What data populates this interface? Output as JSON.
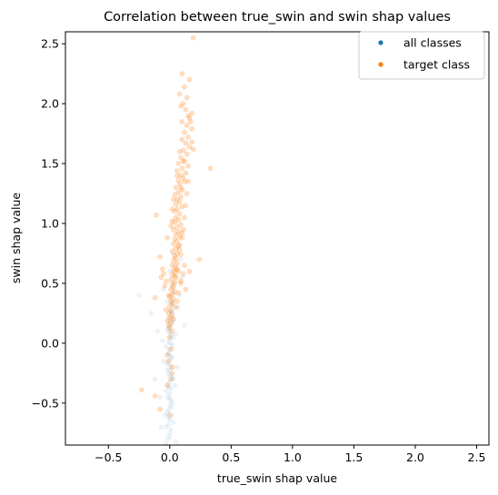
{
  "chart_data": {
    "type": "scatter",
    "title": "Correlation between true_swin and swin shap values",
    "xlabel": "true_swin shap value",
    "ylabel": "swin shap value",
    "xlim": [
      -0.85,
      2.6
    ],
    "ylim": [
      -0.85,
      2.6
    ],
    "xticks": [
      -0.5,
      0.0,
      0.5,
      1.0,
      1.5,
      2.0,
      2.5
    ],
    "yticks": [
      -0.5,
      0.0,
      0.5,
      1.0,
      1.5,
      2.0,
      2.5
    ],
    "xtick_labels": [
      "−0.5",
      "0.0",
      "0.5",
      "1.0",
      "1.5",
      "2.0",
      "2.5"
    ],
    "ytick_labels": [
      "−0.5",
      "0.0",
      "0.5",
      "1.0",
      "1.5",
      "2.0",
      "2.5"
    ],
    "grid": false,
    "legend_position": "top-right",
    "series": [
      {
        "name": "all classes",
        "color": "#1f77b4",
        "opacity": 0.08,
        "points": [
          [
            -0.02,
            -0.8
          ],
          [
            0.0,
            -0.75
          ],
          [
            0.01,
            -0.72
          ],
          [
            -0.01,
            -0.68
          ],
          [
            0.0,
            -0.64
          ],
          [
            0.02,
            -0.6
          ],
          [
            -0.01,
            -0.56
          ],
          [
            0.0,
            -0.52
          ],
          [
            0.01,
            -0.48
          ],
          [
            -0.02,
            -0.45
          ],
          [
            0.0,
            -0.42
          ],
          [
            0.01,
            -0.38
          ],
          [
            -0.01,
            -0.35
          ],
          [
            0.0,
            -0.32
          ],
          [
            0.02,
            -0.29
          ],
          [
            -0.01,
            -0.26
          ],
          [
            0.0,
            -0.23
          ],
          [
            0.01,
            -0.2
          ],
          [
            -0.02,
            -0.17
          ],
          [
            0.0,
            -0.14
          ],
          [
            0.01,
            -0.11
          ],
          [
            -0.01,
            -0.08
          ],
          [
            0.0,
            -0.05
          ],
          [
            0.02,
            -0.02
          ],
          [
            -0.01,
            0.01
          ],
          [
            0.0,
            0.04
          ],
          [
            0.01,
            0.07
          ],
          [
            -0.01,
            0.1
          ],
          [
            0.0,
            0.13
          ],
          [
            0.02,
            0.16
          ],
          [
            0.01,
            0.19
          ],
          [
            0.0,
            0.22
          ],
          [
            0.02,
            0.25
          ],
          [
            0.01,
            0.28
          ],
          [
            0.03,
            0.31
          ],
          [
            0.02,
            0.34
          ],
          [
            0.01,
            0.38
          ],
          [
            0.03,
            0.42
          ],
          [
            0.02,
            0.46
          ],
          [
            0.04,
            0.5
          ],
          [
            -0.03,
            -0.7
          ],
          [
            0.03,
            -0.66
          ],
          [
            -0.02,
            -0.58
          ],
          [
            0.02,
            -0.5
          ],
          [
            -0.03,
            -0.4
          ],
          [
            0.03,
            -0.3
          ],
          [
            -0.02,
            -0.22
          ],
          [
            0.02,
            -0.12
          ],
          [
            -0.03,
            -0.03
          ],
          [
            0.03,
            0.05
          ],
          [
            -0.02,
            0.12
          ],
          [
            0.03,
            0.2
          ],
          [
            -0.01,
            -0.62
          ],
          [
            0.01,
            -0.54
          ],
          [
            0.0,
            -0.46
          ],
          [
            -0.01,
            -0.37
          ],
          [
            0.01,
            -0.27
          ],
          [
            0.0,
            -0.18
          ],
          [
            -0.01,
            -0.09
          ],
          [
            0.01,
            0.0
          ],
          [
            0.0,
            0.09
          ],
          [
            -0.01,
            0.17
          ],
          [
            0.01,
            0.26
          ],
          [
            0.0,
            -0.78
          ],
          [
            -0.04,
            -0.6
          ],
          [
            0.04,
            -0.35
          ],
          [
            -0.05,
            -0.15
          ],
          [
            0.05,
            0.08
          ],
          [
            -0.06,
            0.02
          ],
          [
            0.06,
            -0.2
          ],
          [
            -0.08,
            -0.45
          ],
          [
            0.07,
            0.3
          ],
          [
            -0.1,
            0.1
          ],
          [
            0.08,
            0.4
          ],
          [
            -0.12,
            -0.3
          ],
          [
            0.1,
            0.55
          ],
          [
            -0.25,
            0.4
          ],
          [
            -0.15,
            0.25
          ],
          [
            0.12,
            0.15
          ],
          [
            -0.07,
            -0.7
          ],
          [
            0.05,
            -0.82
          ],
          [
            -0.03,
            -0.84
          ],
          [
            0.0,
            0.6
          ],
          [
            0.04,
            0.65
          ],
          [
            -0.02,
            0.35
          ],
          [
            0.09,
            0.7
          ],
          [
            -0.05,
            0.45
          ],
          [
            0.03,
            0.75
          ]
        ]
      },
      {
        "name": "target class",
        "color": "#ff7f0e",
        "opacity": 0.25,
        "points": [
          [
            0.19,
            2.55
          ],
          [
            0.1,
            2.25
          ],
          [
            0.16,
            2.2
          ],
          [
            0.12,
            2.14
          ],
          [
            0.08,
            2.08
          ],
          [
            0.14,
            2.05
          ],
          [
            0.11,
            2.0
          ],
          [
            0.09,
            1.98
          ],
          [
            0.13,
            1.95
          ],
          [
            0.18,
            1.92
          ],
          [
            0.16,
            1.88
          ],
          [
            0.1,
            1.85
          ],
          [
            0.14,
            1.82
          ],
          [
            0.18,
            1.79
          ],
          [
            0.12,
            1.76
          ],
          [
            0.15,
            1.72
          ],
          [
            0.1,
            1.7
          ],
          [
            0.13,
            1.67
          ],
          [
            0.16,
            1.64
          ],
          [
            0.11,
            1.61
          ],
          [
            0.14,
            1.58
          ],
          [
            0.09,
            1.55
          ],
          [
            0.12,
            1.52
          ],
          [
            0.07,
            1.5
          ],
          [
            0.15,
            1.48
          ],
          [
            0.1,
            1.46
          ],
          [
            0.33,
            1.46
          ],
          [
            0.06,
            1.44
          ],
          [
            0.13,
            1.42
          ],
          [
            0.09,
            1.4
          ],
          [
            0.11,
            1.38
          ],
          [
            0.07,
            1.36
          ],
          [
            0.12,
            1.35
          ],
          [
            0.08,
            1.33
          ],
          [
            0.05,
            1.3
          ],
          [
            0.1,
            1.28
          ],
          [
            0.07,
            1.26
          ],
          [
            0.04,
            1.24
          ],
          [
            0.09,
            1.22
          ],
          [
            0.06,
            1.2
          ],
          [
            0.08,
            1.18
          ],
          [
            0.05,
            1.16
          ],
          [
            0.1,
            1.14
          ],
          [
            0.06,
            1.12
          ],
          [
            0.04,
            1.1
          ],
          [
            0.08,
            1.08
          ],
          [
            -0.11,
            1.07
          ],
          [
            0.05,
            1.05
          ],
          [
            0.07,
            1.03
          ],
          [
            0.04,
            1.01
          ],
          [
            0.09,
            0.99
          ],
          [
            0.06,
            0.97
          ],
          [
            0.03,
            0.95
          ],
          [
            0.07,
            0.93
          ],
          [
            0.05,
            0.91
          ],
          [
            0.08,
            0.89
          ],
          [
            0.04,
            0.87
          ],
          [
            0.06,
            0.85
          ],
          [
            0.03,
            0.83
          ],
          [
            0.07,
            0.81
          ],
          [
            0.05,
            0.79
          ],
          [
            0.02,
            0.77
          ],
          [
            0.06,
            0.75
          ],
          [
            0.04,
            0.73
          ],
          [
            0.24,
            0.7
          ],
          [
            0.05,
            0.71
          ],
          [
            0.03,
            0.69
          ],
          [
            0.06,
            0.67
          ],
          [
            0.02,
            0.65
          ],
          [
            0.05,
            0.63
          ],
          [
            0.03,
            0.61
          ],
          [
            0.16,
            0.6
          ],
          [
            0.04,
            0.59
          ],
          [
            0.02,
            0.57
          ],
          [
            0.05,
            0.55
          ],
          [
            0.01,
            0.53
          ],
          [
            0.04,
            0.51
          ],
          [
            0.02,
            0.49
          ],
          [
            0.03,
            0.47
          ],
          [
            0.01,
            0.45
          ],
          [
            0.04,
            0.43
          ],
          [
            0.02,
            0.41
          ],
          [
            0.0,
            0.39
          ],
          [
            0.03,
            0.37
          ],
          [
            0.01,
            0.35
          ],
          [
            0.02,
            0.33
          ],
          [
            0.0,
            0.31
          ],
          [
            -0.03,
            0.28
          ],
          [
            0.01,
            0.27
          ],
          [
            -0.01,
            0.25
          ],
          [
            0.02,
            0.23
          ],
          [
            0.0,
            0.21
          ],
          [
            -0.02,
            0.19
          ],
          [
            0.01,
            0.17
          ],
          [
            -0.01,
            0.15
          ],
          [
            0.0,
            0.13
          ],
          [
            -0.05,
            0.58
          ],
          [
            -0.07,
            0.55
          ],
          [
            -0.04,
            0.48
          ],
          [
            -0.06,
            0.62
          ],
          [
            0.11,
            0.58
          ],
          [
            0.09,
            0.52
          ],
          [
            0.13,
            0.45
          ],
          [
            -0.08,
            0.72
          ],
          [
            0.08,
            0.78
          ],
          [
            0.1,
            0.88
          ],
          [
            0.11,
            0.95
          ],
          [
            0.12,
            1.05
          ],
          [
            0.13,
            1.15
          ],
          [
            0.14,
            1.25
          ],
          [
            -0.02,
            0.88
          ],
          [
            0.01,
            0.98
          ],
          [
            0.02,
            1.12
          ],
          [
            0.03,
            1.2
          ],
          [
            0.12,
            0.65
          ],
          [
            0.09,
            0.5
          ],
          [
            0.07,
            0.42
          ],
          [
            -0.03,
            0.52
          ],
          [
            -0.01,
            0.4
          ],
          [
            0.05,
            0.3
          ],
          [
            0.03,
            0.2
          ],
          [
            -0.12,
            0.38
          ],
          [
            0.06,
            0.35
          ],
          [
            0.0,
            0.05
          ],
          [
            0.01,
            -0.05
          ],
          [
            -0.01,
            -0.15
          ],
          [
            0.02,
            -0.25
          ],
          [
            -0.02,
            -0.35
          ],
          [
            -0.23,
            -0.39
          ],
          [
            -0.12,
            -0.44
          ],
          [
            -0.08,
            -0.55
          ],
          [
            0.0,
            -0.6
          ],
          [
            0.02,
            0.1
          ],
          [
            -0.02,
            -0.1
          ],
          [
            0.01,
            -0.3
          ],
          [
            0.02,
            -0.2
          ],
          [
            0.18,
            1.68
          ],
          [
            0.17,
            1.85
          ],
          [
            0.19,
            1.62
          ],
          [
            0.15,
            1.9
          ],
          [
            0.08,
            1.6
          ],
          [
            0.11,
            1.52
          ],
          [
            0.06,
            1.4
          ],
          [
            0.15,
            1.35
          ],
          [
            0.09,
            1.3
          ],
          [
            0.02,
            1.02
          ],
          [
            0.1,
            0.92
          ],
          [
            0.08,
            0.82
          ],
          [
            0.06,
            0.62
          ],
          [
            0.04,
            0.56
          ],
          [
            0.07,
            0.6
          ],
          [
            0.09,
            0.74
          ]
        ]
      }
    ]
  }
}
